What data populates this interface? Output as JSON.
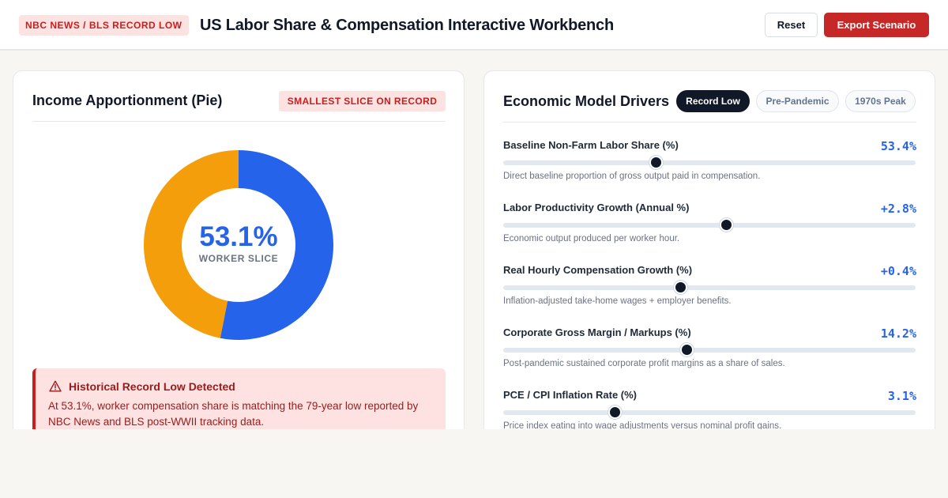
{
  "header": {
    "source_tag": "NBC NEWS / BLS RECORD LOW",
    "title": "US Labor Share & Compensation Interactive Workbench",
    "reset_label": "Reset",
    "export_label": "Export Scenario"
  },
  "pie_card": {
    "title": "Income Apportionment (Pie)",
    "badge": "SMALLEST SLICE ON RECORD",
    "center_value": "53.1%",
    "center_caption": "WORKER SLICE",
    "colors": {
      "worker": "#2563eb",
      "remainder": "#f59e0b"
    },
    "alert": {
      "icon": "warning-triangle-icon",
      "title": "Historical Record Low Detected",
      "body": "At 53.1%, worker compensation share is matching the 79-year low reported by NBC News and BLS post-WWII tracking data."
    }
  },
  "chart_data": {
    "type": "pie",
    "categories": [
      "Worker Slice",
      ""
    ],
    "values": [
      53.1,
      46.9
    ],
    "colors": [
      "#2563eb",
      "#f59e0b"
    ],
    "donut": true
  },
  "drivers_card": {
    "title": "Economic Model Drivers",
    "presets": [
      {
        "label": "Record Low",
        "active": true
      },
      {
        "label": "Pre-Pandemic",
        "active": false
      },
      {
        "label": "1970s Peak",
        "active": false
      }
    ],
    "drivers": [
      {
        "label": "Baseline Non-Farm Labor Share (%)",
        "value": "53.4%",
        "description": "Direct baseline proportion of gross output paid in compensation.",
        "level": 0.37
      },
      {
        "label": "Labor Productivity Growth (Annual %)",
        "value": "+2.8%",
        "description": "Economic output produced per worker hour.",
        "level": 0.54
      },
      {
        "label": "Real Hourly Compensation Growth (%)",
        "value": "+0.4%",
        "description": "Inflation-adjusted take-home wages + employer benefits.",
        "level": 0.43
      },
      {
        "label": "Corporate Gross Margin / Markups (%)",
        "value": "14.2%",
        "description": "Post-pandemic sustained corporate profit margins as a share of sales.",
        "level": 0.445
      },
      {
        "label": "PCE / CPI Inflation Rate (%)",
        "value": "3.1%",
        "description": "Price index eating into wage adjustments versus nominal profit gains.",
        "level": 0.27
      }
    ]
  }
}
